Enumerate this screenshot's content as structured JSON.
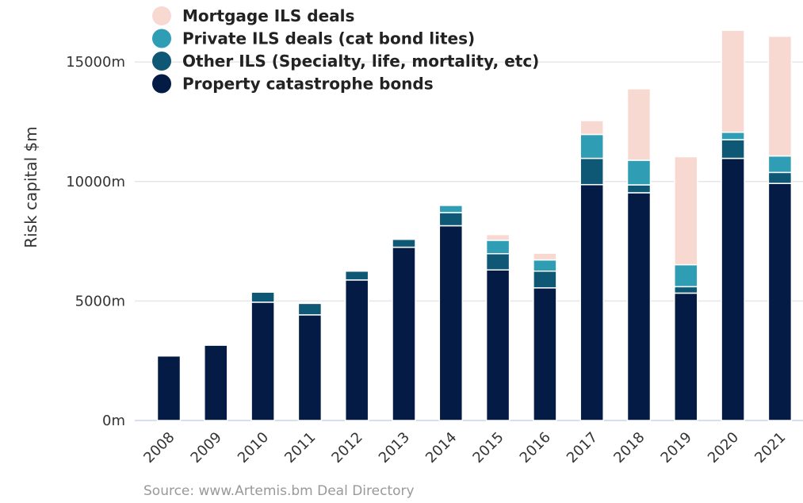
{
  "chart_data": {
    "type": "bar",
    "stacked": true,
    "categories": [
      "2008",
      "2009",
      "2010",
      "2011",
      "2012",
      "2013",
      "2014",
      "2015",
      "2016",
      "2017",
      "2018",
      "2019",
      "2020",
      "2021"
    ],
    "series": [
      {
        "name": "Property catastrophe bonds",
        "color": "#041c45",
        "values": [
          2700,
          3150,
          4950,
          4420,
          5880,
          7250,
          8150,
          6300,
          5550,
          9870,
          9530,
          5330,
          10970,
          9920
        ]
      },
      {
        "name": "Other ILS (Specialty, life, mortality, etc)",
        "color": "#0e5876",
        "values": [
          0,
          0,
          420,
          480,
          370,
          330,
          550,
          680,
          700,
          1100,
          330,
          270,
          780,
          460
        ]
      },
      {
        "name": "Private ILS deals (cat bond lites)",
        "color": "#2f9db3",
        "values": [
          0,
          0,
          0,
          0,
          0,
          0,
          300,
          560,
          470,
          1000,
          1030,
          920,
          310,
          690
        ]
      },
      {
        "name": "Mortgage ILS deals",
        "color": "#f8d9d2",
        "values": [
          0,
          0,
          0,
          0,
          0,
          0,
          0,
          240,
          280,
          580,
          2990,
          4520,
          4270,
          5010
        ]
      }
    ],
    "legend_order": [
      3,
      2,
      1,
      0
    ],
    "ylabel": "Risk capital $m",
    "ylim": [
      0,
      16500
    ],
    "yticks": [
      {
        "value": 0,
        "label": "0m"
      },
      {
        "value": 5000,
        "label": "5000m"
      },
      {
        "value": 10000,
        "label": "10000m"
      },
      {
        "value": 15000,
        "label": "15000m"
      }
    ],
    "grid": true,
    "legend_position": "top-left",
    "credit": "Source: www.Artemis.bm Deal Directory"
  }
}
